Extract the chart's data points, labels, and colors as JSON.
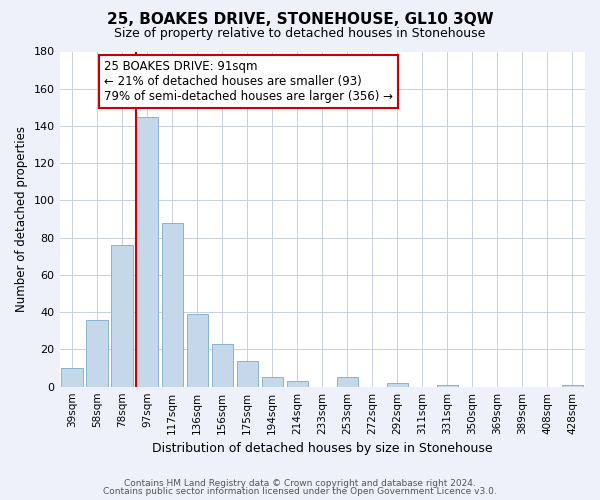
{
  "title": "25, BOAKES DRIVE, STONEHOUSE, GL10 3QW",
  "subtitle": "Size of property relative to detached houses in Stonehouse",
  "xlabel": "Distribution of detached houses by size in Stonehouse",
  "ylabel": "Number of detached properties",
  "bar_labels": [
    "39sqm",
    "58sqm",
    "78sqm",
    "97sqm",
    "117sqm",
    "136sqm",
    "156sqm",
    "175sqm",
    "194sqm",
    "214sqm",
    "233sqm",
    "253sqm",
    "272sqm",
    "292sqm",
    "311sqm",
    "331sqm",
    "350sqm",
    "369sqm",
    "389sqm",
    "408sqm",
    "428sqm"
  ],
  "bar_values": [
    10,
    36,
    76,
    145,
    88,
    39,
    23,
    14,
    5,
    3,
    0,
    5,
    0,
    2,
    0,
    1,
    0,
    0,
    0,
    0,
    1
  ],
  "bar_color": "#c5d8ea",
  "bar_edge_color": "#8ab4d0",
  "vline_bar_index": 3,
  "vline_color": "#cc0000",
  "ylim": [
    0,
    180
  ],
  "yticks": [
    0,
    20,
    40,
    60,
    80,
    100,
    120,
    140,
    160,
    180
  ],
  "ann_line1": "25 BOAKES DRIVE: 91sqm",
  "ann_line2": "← 21% of detached houses are smaller (93)",
  "ann_line3": "79% of semi-detached houses are larger (356) →",
  "ann_box_color": "#ffffff",
  "ann_box_edge_color": "#cc0000",
  "footer_line1": "Contains HM Land Registry data © Crown copyright and database right 2024.",
  "footer_line2": "Contains public sector information licensed under the Open Government Licence v3.0.",
  "background_color": "#eef1fa",
  "plot_bg_color": "#ffffff",
  "grid_color": "#c8d0e0",
  "title_fontsize": 11,
  "subtitle_fontsize": 9,
  "ylabel_fontsize": 8.5,
  "xlabel_fontsize": 9,
  "tick_fontsize": 7.5,
  "ann_fontsize": 8.5,
  "footer_fontsize": 6.5
}
